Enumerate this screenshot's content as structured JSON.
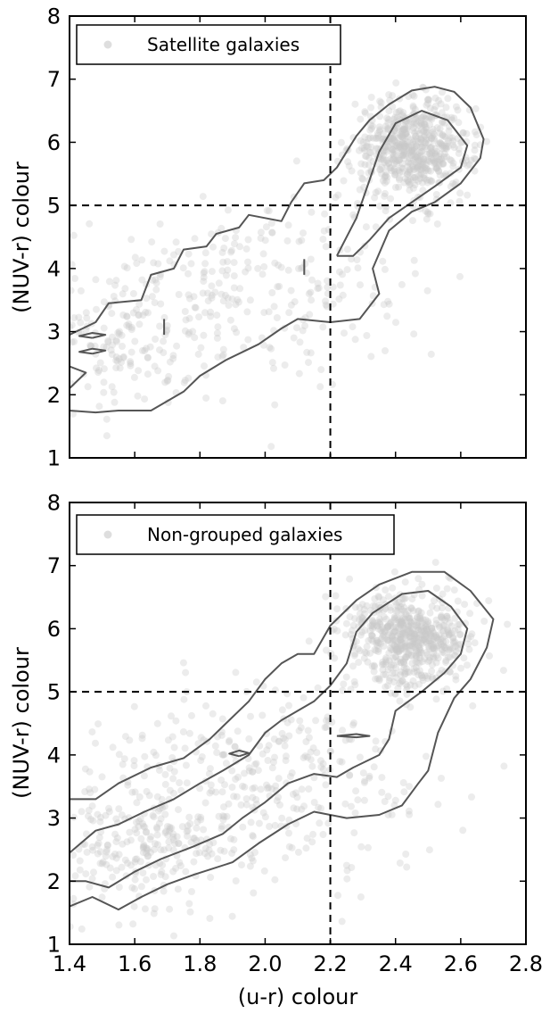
{
  "chart_data": [
    {
      "type": "scatter",
      "legend": {
        "label": "Satellite galaxies",
        "placement": "top-left"
      },
      "xlabel": "",
      "ylabel": "(NUV-r) colour",
      "xlim": [
        1.4,
        2.8
      ],
      "ylim": [
        1,
        8
      ],
      "xticks": [
        "1.4",
        "1.6",
        "1.8",
        "2.0",
        "2.2",
        "2.4",
        "2.6",
        "2.8"
      ],
      "xtick_labels_visible": false,
      "yticks": [
        "1",
        "2",
        "3",
        "4",
        "5",
        "6",
        "7",
        "8"
      ],
      "grid": false,
      "reference_lines": {
        "x": 2.2,
        "y": 5.0,
        "style": "dashed"
      },
      "point_color": "#c8c8c8",
      "contour_color": "#555555",
      "clusters": [
        {
          "cx": 2.45,
          "cy": 5.9,
          "sx": 0.09,
          "sy": 0.38,
          "n": 620
        },
        {
          "cx": 1.95,
          "cy": 3.7,
          "sx": 0.26,
          "sy": 0.75,
          "n": 300
        },
        {
          "cx": 1.55,
          "cy": 2.7,
          "sx": 0.12,
          "sy": 0.45,
          "n": 120
        }
      ],
      "contours": [
        [
          [
            1.4,
            1.75
          ],
          [
            1.4,
            2.1
          ],
          [
            1.45,
            2.35
          ],
          [
            1.4,
            2.45
          ],
          [
            1.4,
            2.95
          ],
          [
            1.48,
            3.15
          ],
          [
            1.52,
            3.45
          ],
          [
            1.62,
            3.5
          ],
          [
            1.65,
            3.9
          ],
          [
            1.72,
            4.0
          ],
          [
            1.75,
            4.3
          ],
          [
            1.82,
            4.35
          ],
          [
            1.85,
            4.55
          ],
          [
            1.92,
            4.65
          ],
          [
            1.95,
            4.85
          ],
          [
            2.05,
            4.75
          ],
          [
            2.08,
            5.05
          ],
          [
            2.12,
            5.35
          ],
          [
            2.18,
            5.4
          ],
          [
            2.22,
            5.6
          ],
          [
            2.28,
            6.1
          ],
          [
            2.32,
            6.35
          ],
          [
            2.38,
            6.6
          ],
          [
            2.45,
            6.82
          ],
          [
            2.52,
            6.88
          ],
          [
            2.58,
            6.8
          ],
          [
            2.63,
            6.55
          ],
          [
            2.67,
            6.05
          ],
          [
            2.66,
            5.75
          ],
          [
            2.6,
            5.35
          ],
          [
            2.52,
            5.05
          ],
          [
            2.45,
            4.9
          ],
          [
            2.38,
            4.6
          ],
          [
            2.33,
            4.0
          ],
          [
            2.35,
            3.6
          ],
          [
            2.29,
            3.2
          ],
          [
            2.2,
            3.15
          ],
          [
            2.1,
            3.2
          ],
          [
            2.05,
            3.05
          ],
          [
            1.98,
            2.8
          ],
          [
            1.88,
            2.55
          ],
          [
            1.8,
            2.3
          ],
          [
            1.75,
            2.05
          ],
          [
            1.7,
            1.9
          ],
          [
            1.65,
            1.75
          ],
          [
            1.55,
            1.75
          ],
          [
            1.48,
            1.72
          ],
          [
            1.4,
            1.75
          ]
        ],
        [
          [
            2.22,
            4.2
          ],
          [
            2.28,
            4.8
          ],
          [
            2.32,
            5.4
          ],
          [
            2.35,
            5.85
          ],
          [
            2.4,
            6.3
          ],
          [
            2.48,
            6.5
          ],
          [
            2.56,
            6.35
          ],
          [
            2.62,
            5.95
          ],
          [
            2.6,
            5.6
          ],
          [
            2.52,
            5.3
          ],
          [
            2.45,
            5.05
          ],
          [
            2.38,
            4.8
          ],
          [
            2.32,
            4.45
          ],
          [
            2.27,
            4.2
          ],
          [
            2.22,
            4.2
          ]
        ],
        [
          [
            1.47,
            2.9
          ],
          [
            1.51,
            2.95
          ],
          [
            1.47,
            2.98
          ],
          [
            1.43,
            2.93
          ],
          [
            1.47,
            2.9
          ]
        ],
        [
          [
            1.47,
            2.65
          ],
          [
            1.51,
            2.7
          ],
          [
            1.47,
            2.73
          ],
          [
            1.43,
            2.68
          ],
          [
            1.47,
            2.65
          ]
        ],
        [
          [
            1.69,
            2.95
          ],
          [
            1.69,
            3.2
          ]
        ],
        [
          [
            2.12,
            3.9
          ],
          [
            2.12,
            4.15
          ]
        ]
      ]
    },
    {
      "type": "scatter",
      "legend": {
        "label": "Non-grouped galaxies",
        "placement": "top-left"
      },
      "xlabel": "(u-r) colour",
      "ylabel": "(NUV-r) colour",
      "xlim": [
        1.4,
        2.8
      ],
      "ylim": [
        1,
        8
      ],
      "xticks": [
        "1.4",
        "1.6",
        "1.8",
        "2.0",
        "2.2",
        "2.4",
        "2.6",
        "2.8"
      ],
      "xtick_labels_visible": true,
      "yticks": [
        "1",
        "2",
        "3",
        "4",
        "5",
        "6",
        "7",
        "8"
      ],
      "grid": false,
      "reference_lines": {
        "x": 2.2,
        "y": 5.0,
        "style": "dashed"
      },
      "point_color": "#c8c8c8",
      "contour_color": "#555555",
      "clusters": [
        {
          "cx": 2.44,
          "cy": 5.85,
          "sx": 0.09,
          "sy": 0.38,
          "n": 620
        },
        {
          "cx": 1.95,
          "cy": 3.6,
          "sx": 0.28,
          "sy": 0.8,
          "n": 380
        },
        {
          "cx": 1.6,
          "cy": 2.5,
          "sx": 0.15,
          "sy": 0.45,
          "n": 220
        }
      ],
      "contours": [
        [
          [
            1.4,
            1.6
          ],
          [
            1.4,
            2.0
          ],
          [
            1.4,
            3.3
          ],
          [
            1.48,
            3.3
          ],
          [
            1.55,
            3.55
          ],
          [
            1.65,
            3.8
          ],
          [
            1.75,
            3.95
          ],
          [
            1.83,
            4.25
          ],
          [
            1.88,
            4.5
          ],
          [
            1.95,
            4.85
          ],
          [
            2.0,
            5.2
          ],
          [
            2.05,
            5.45
          ],
          [
            2.1,
            5.6
          ],
          [
            2.15,
            5.6
          ],
          [
            2.2,
            6.05
          ],
          [
            2.28,
            6.45
          ],
          [
            2.35,
            6.7
          ],
          [
            2.45,
            6.9
          ],
          [
            2.55,
            6.9
          ],
          [
            2.63,
            6.6
          ],
          [
            2.7,
            6.15
          ],
          [
            2.68,
            5.7
          ],
          [
            2.63,
            5.2
          ],
          [
            2.58,
            4.9
          ],
          [
            2.53,
            4.35
          ],
          [
            2.5,
            3.75
          ],
          [
            2.47,
            3.55
          ],
          [
            2.42,
            3.2
          ],
          [
            2.35,
            3.05
          ],
          [
            2.25,
            3.0
          ],
          [
            2.15,
            3.1
          ],
          [
            2.07,
            2.9
          ],
          [
            1.98,
            2.6
          ],
          [
            1.9,
            2.3
          ],
          [
            1.78,
            2.1
          ],
          [
            1.7,
            1.95
          ],
          [
            1.62,
            1.75
          ],
          [
            1.55,
            1.55
          ],
          [
            1.47,
            1.75
          ],
          [
            1.4,
            1.6
          ]
        ],
        [
          [
            1.4,
            2.0
          ],
          [
            1.4,
            2.45
          ],
          [
            1.48,
            2.8
          ],
          [
            1.55,
            2.9
          ],
          [
            1.63,
            3.1
          ],
          [
            1.72,
            3.3
          ],
          [
            1.8,
            3.55
          ],
          [
            1.87,
            3.75
          ],
          [
            1.95,
            4.0
          ],
          [
            2.0,
            4.35
          ],
          [
            2.05,
            4.55
          ],
          [
            2.1,
            4.7
          ],
          [
            2.15,
            4.85
          ],
          [
            2.2,
            5.1
          ],
          [
            2.25,
            5.45
          ],
          [
            2.28,
            5.95
          ],
          [
            2.33,
            6.25
          ],
          [
            2.42,
            6.55
          ],
          [
            2.5,
            6.6
          ],
          [
            2.57,
            6.35
          ],
          [
            2.62,
            6.0
          ],
          [
            2.6,
            5.6
          ],
          [
            2.55,
            5.3
          ],
          [
            2.48,
            5.0
          ],
          [
            2.4,
            4.7
          ],
          [
            2.38,
            4.25
          ],
          [
            2.35,
            4.0
          ],
          [
            2.27,
            3.8
          ],
          [
            2.22,
            3.65
          ],
          [
            2.15,
            3.7
          ],
          [
            2.07,
            3.55
          ],
          [
            2.0,
            3.25
          ],
          [
            1.93,
            3.0
          ],
          [
            1.87,
            2.75
          ],
          [
            1.78,
            2.55
          ],
          [
            1.68,
            2.35
          ],
          [
            1.6,
            2.15
          ],
          [
            1.52,
            1.9
          ],
          [
            1.45,
            2.0
          ],
          [
            1.4,
            2.0
          ]
        ],
        [
          [
            1.92,
            3.98
          ],
          [
            1.95,
            4.03
          ],
          [
            1.92,
            4.07
          ],
          [
            1.89,
            4.02
          ],
          [
            1.92,
            3.98
          ]
        ],
        [
          [
            2.22,
            4.3
          ],
          [
            2.28,
            4.28
          ],
          [
            2.32,
            4.3
          ],
          [
            2.28,
            4.33
          ],
          [
            2.22,
            4.3
          ]
        ]
      ]
    }
  ]
}
